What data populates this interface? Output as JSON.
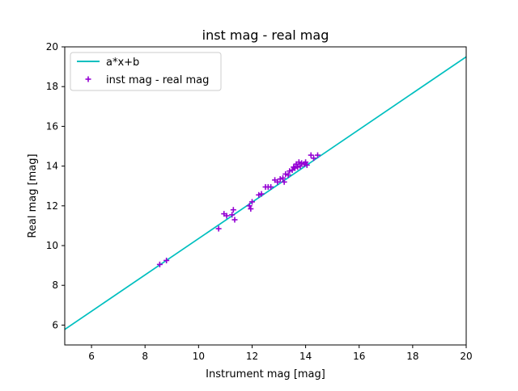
{
  "chart_data": {
    "type": "scatter",
    "title": "inst mag - real mag",
    "xlabel": "Instrument mag [mag]",
    "ylabel": "Real mag [mag]",
    "xlim": [
      5,
      20
    ],
    "ylim": [
      5,
      20
    ],
    "xticks": [
      6,
      8,
      10,
      12,
      14,
      16,
      18,
      20
    ],
    "yticks": [
      6,
      8,
      10,
      12,
      14,
      16,
      18,
      20
    ],
    "grid": false,
    "legend_position": "top-left",
    "legend": [
      "a*x+b",
      "inst mag - real mag"
    ],
    "fit_line": {
      "name": "a*x+b",
      "color": "#00bfbf",
      "x": [
        5,
        20
      ],
      "y": [
        5.78,
        19.5
      ]
    },
    "scatter": {
      "name": "inst mag - real mag",
      "color": "#9400d3",
      "marker": "plus",
      "points": [
        [
          8.55,
          9.05
        ],
        [
          8.8,
          9.25
        ],
        [
          10.75,
          10.85
        ],
        [
          10.95,
          11.6
        ],
        [
          11.05,
          11.5
        ],
        [
          11.25,
          11.55
        ],
        [
          11.3,
          11.8
        ],
        [
          11.35,
          11.3
        ],
        [
          11.9,
          12.0
        ],
        [
          11.95,
          11.85
        ],
        [
          12.0,
          12.2
        ],
        [
          12.25,
          12.55
        ],
        [
          12.35,
          12.6
        ],
        [
          12.5,
          12.95
        ],
        [
          12.6,
          12.95
        ],
        [
          12.7,
          12.95
        ],
        [
          12.85,
          13.3
        ],
        [
          12.95,
          13.2
        ],
        [
          13.05,
          13.35
        ],
        [
          13.15,
          13.4
        ],
        [
          13.2,
          13.2
        ],
        [
          13.25,
          13.6
        ],
        [
          13.35,
          13.55
        ],
        [
          13.4,
          13.75
        ],
        [
          13.5,
          13.8
        ],
        [
          13.55,
          13.95
        ],
        [
          13.6,
          13.9
        ],
        [
          13.65,
          14.1
        ],
        [
          13.7,
          13.95
        ],
        [
          13.75,
          14.2
        ],
        [
          13.8,
          14.0
        ],
        [
          13.85,
          14.15
        ],
        [
          13.95,
          14.1
        ],
        [
          14.0,
          14.2
        ],
        [
          14.05,
          14.05
        ],
        [
          14.2,
          14.55
        ],
        [
          14.3,
          14.4
        ],
        [
          14.45,
          14.55
        ]
      ]
    }
  }
}
